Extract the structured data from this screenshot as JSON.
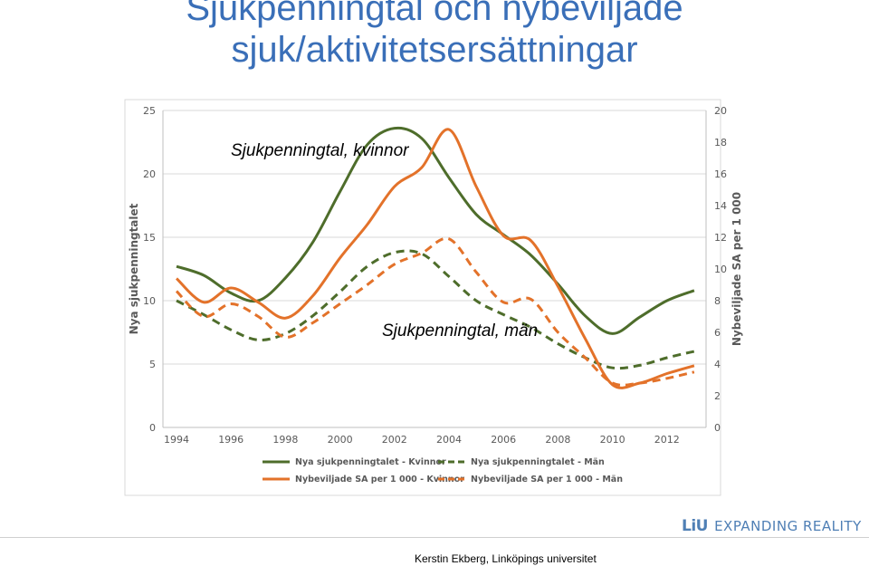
{
  "slide": {
    "title_line1": "Sjukpenningtal och nybeviljade",
    "title_line2": "sjuk/aktivitetsersättningar",
    "logo_liu": "LiU",
    "logo_tagline": "EXPANDING REALITY",
    "author": "Kerstin Ekberg, Linköpings universitet"
  },
  "chart_data": {
    "type": "line",
    "categories": [
      "1994",
      "1995",
      "1996",
      "1997",
      "1998",
      "1999",
      "2000",
      "2001",
      "2002",
      "2003",
      "2004",
      "2005",
      "2006",
      "2007",
      "2008",
      "2009",
      "2010",
      "2011",
      "2012",
      "2013"
    ],
    "x_tick_labels": [
      "1994",
      "1996",
      "1998",
      "2000",
      "2002",
      "2004",
      "2006",
      "2008",
      "2010",
      "2012"
    ],
    "ylabel": "Nya sjukpenningtalet",
    "ylabel_right": "Nybeviljade SA per 1 000",
    "ylim": [
      0,
      25
    ],
    "ylim_right": [
      0,
      20
    ],
    "yticks": [
      "0",
      "5",
      "10",
      "15",
      "20",
      "25"
    ],
    "yticks_right": [
      "0",
      "2",
      "4",
      "6",
      "8",
      "10",
      "12",
      "14",
      "16",
      "18",
      "20"
    ],
    "grid": true,
    "legend_position": "bottom",
    "annotations": [
      "Sjukpenningtal, kvinnor",
      "Sjukpenningtal, män"
    ],
    "series": [
      {
        "name": "Nya sjukpenningtalet - Kvinnor",
        "axis": "left",
        "color": "#4e6d2b",
        "dash": false,
        "values": [
          12.7,
          12.0,
          10.6,
          10.0,
          11.8,
          14.6,
          18.6,
          22.3,
          23.6,
          22.8,
          19.7,
          16.8,
          15.2,
          13.6,
          11.3,
          8.8,
          7.4,
          8.7,
          10.0,
          10.8
        ]
      },
      {
        "name": "Nya sjukpenningtalet - Män",
        "axis": "left",
        "color": "#4e6d2b",
        "dash": true,
        "values": [
          10.0,
          8.9,
          7.7,
          6.9,
          7.4,
          8.8,
          10.7,
          12.7,
          13.8,
          13.7,
          11.9,
          10.0,
          8.9,
          7.9,
          6.6,
          5.5,
          4.7,
          4.9,
          5.5,
          6.0
        ]
      },
      {
        "name": "Nybeviljade SA per 1 000 - Kvinnor",
        "axis": "right",
        "color": "#e3722a",
        "dash": false,
        "values": [
          9.4,
          7.9,
          8.8,
          7.9,
          6.9,
          8.3,
          10.7,
          12.8,
          15.2,
          16.4,
          18.8,
          15.2,
          12.1,
          11.8,
          8.9,
          5.6,
          2.7,
          2.8,
          3.4,
          3.9
        ]
      },
      {
        "name": "Nybeviljade SA per 1 000 - Män",
        "axis": "right",
        "color": "#e3722a",
        "dash": true,
        "values": [
          8.6,
          7.0,
          7.8,
          7.0,
          5.7,
          6.6,
          7.8,
          9.0,
          10.3,
          11.0,
          11.9,
          9.8,
          7.9,
          8.1,
          6.0,
          4.4,
          2.8,
          2.8,
          3.1,
          3.5
        ]
      }
    ]
  }
}
